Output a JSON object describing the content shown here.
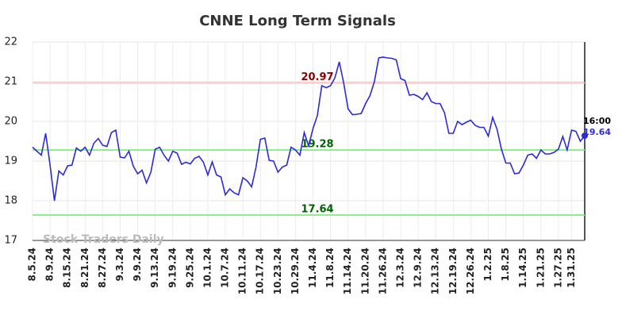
{
  "chart_data": {
    "type": "line",
    "title": "CNNE Long Term Signals",
    "watermark": "Stock Traders Daily",
    "color": "#2b2bd6",
    "grid": true,
    "ylim": [
      17,
      22
    ],
    "yticks": [
      17,
      18,
      19,
      20,
      21,
      22
    ],
    "last_time": "16:00",
    "levels": [
      {
        "value": 20.97,
        "line_color": "#ffc8c8",
        "label_color": "#8b0000"
      },
      {
        "value": 19.28,
        "line_color": "#90ee90",
        "label_color": "#006400"
      },
      {
        "value": 17.64,
        "line_color": "#90ee90",
        "label_color": "#006400"
      }
    ],
    "categories": [
      "8.5.24",
      null,
      null,
      null,
      "8.9.24",
      null,
      null,
      null,
      "8.15.24",
      null,
      null,
      null,
      "8.21.24",
      null,
      null,
      null,
      "8.27.24",
      null,
      null,
      null,
      "9.3.24",
      null,
      null,
      null,
      "9.9.24",
      null,
      null,
      null,
      "9.13.24",
      null,
      null,
      null,
      "9.19.24",
      null,
      null,
      null,
      "9.25.24",
      null,
      null,
      null,
      "10.1.24",
      null,
      null,
      null,
      "10.7.24",
      null,
      null,
      null,
      "10.11.24",
      null,
      null,
      null,
      "10.17.24",
      null,
      null,
      null,
      "10.23.24",
      null,
      null,
      null,
      "10.29.24",
      null,
      null,
      null,
      "11.4.24",
      null,
      null,
      null,
      "11.8.24",
      null,
      null,
      null,
      "11.14.24",
      null,
      null,
      null,
      "11.20.24",
      null,
      null,
      null,
      "11.26.24",
      null,
      null,
      null,
      "12.3.24",
      null,
      null,
      null,
      "12.9.24",
      null,
      null,
      null,
      "12.13.24",
      null,
      null,
      null,
      "12.19.24",
      null,
      null,
      null,
      "12.26.24",
      null,
      null,
      null,
      "1.2.25",
      null,
      null,
      null,
      "1.8.25",
      null,
      null,
      null,
      "1.14.25",
      null,
      null,
      null,
      "1.21.25",
      null,
      null,
      null,
      "1.27.25",
      null,
      null,
      "1.31.25",
      null,
      null,
      null
    ],
    "values": [
      19.35,
      19.25,
      19.15,
      19.7,
      18.9,
      18.0,
      18.75,
      18.65,
      18.88,
      18.9,
      19.33,
      19.25,
      19.35,
      19.15,
      19.45,
      19.57,
      19.4,
      19.37,
      19.72,
      19.78,
      19.1,
      19.08,
      19.25,
      18.87,
      18.68,
      18.77,
      18.45,
      18.72,
      19.3,
      19.35,
      19.15,
      19.0,
      19.25,
      19.2,
      18.92,
      18.97,
      18.93,
      19.07,
      19.12,
      18.97,
      18.65,
      18.98,
      18.65,
      18.6,
      18.15,
      18.3,
      18.2,
      18.15,
      18.58,
      18.5,
      18.35,
      18.85,
      19.55,
      19.58,
      19.02,
      19.0,
      18.72,
      18.85,
      18.9,
      19.35,
      19.28,
      19.15,
      19.72,
      19.38,
      19.82,
      20.15,
      20.9,
      20.85,
      20.9,
      21.1,
      21.5,
      20.97,
      20.32,
      20.17,
      20.18,
      20.2,
      20.45,
      20.65,
      21.0,
      21.6,
      21.62,
      21.6,
      21.59,
      21.55,
      21.08,
      21.03,
      20.66,
      20.68,
      20.63,
      20.55,
      20.72,
      20.5,
      20.45,
      20.45,
      20.22,
      19.7,
      19.7,
      20.0,
      19.92,
      19.98,
      20.03,
      19.9,
      19.85,
      19.85,
      19.63,
      20.1,
      19.8,
      19.3,
      18.95,
      18.95,
      18.68,
      18.7,
      18.9,
      19.15,
      19.18,
      19.07,
      19.28,
      19.18,
      19.18,
      19.22,
      19.3,
      19.62,
      19.28,
      19.78,
      19.75,
      19.5,
      19.64
    ]
  }
}
